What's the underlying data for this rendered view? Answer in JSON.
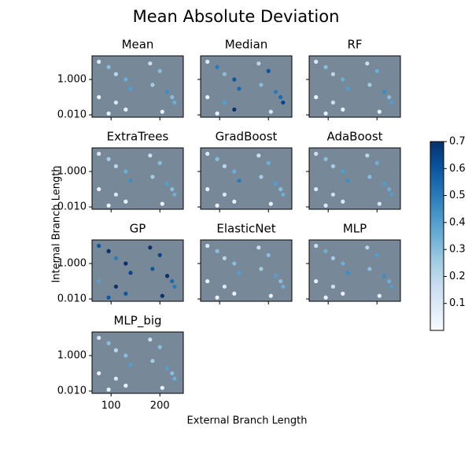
{
  "chart_data": {
    "type": "scatter",
    "title": "Mean Absolute Deviation",
    "xlabel": "External Branch Length",
    "ylabel": "Internal Branch Length",
    "log_y": true,
    "background": "#778899",
    "xlim": [
      61,
      248
    ],
    "xticks": [
      100,
      200
    ],
    "ylim": [
      0.0074,
      21.5
    ],
    "yticks": [
      {
        "value": 1,
        "label": "1.000"
      },
      {
        "value": 0.01,
        "label": "0.010"
      }
    ],
    "x": [
      75,
      95,
      110,
      130,
      140,
      75,
      110,
      130,
      180,
      200,
      215,
      230,
      185,
      205,
      225,
      95
    ],
    "y": [
      10,
      5,
      2,
      1,
      0.3,
      0.1,
      0.05,
      0.02,
      8,
      3,
      0.2,
      0.05,
      0.5,
      0.015,
      0.1,
      0.012
    ],
    "colorbar": {
      "clim": [
        0,
        0.7
      ],
      "ticks": [
        0.1,
        0.2,
        0.3,
        0.4,
        0.5,
        0.6,
        0.7
      ],
      "colormap": [
        "#f7fbff",
        "#deebf7",
        "#c6dbef",
        "#9ecae1",
        "#6baed6",
        "#4292c6",
        "#2171b5",
        "#08519c",
        "#08306b"
      ]
    },
    "panels": [
      {
        "name": "Mean",
        "values": [
          0.1,
          0.3,
          0.2,
          0.35,
          0.4,
          0.05,
          0.1,
          0.05,
          0.15,
          0.3,
          0.45,
          0.35,
          0.25,
          0.05,
          0.3,
          0.05
        ]
      },
      {
        "name": "Median",
        "values": [
          0.1,
          0.5,
          0.3,
          0.6,
          0.55,
          0.05,
          0.4,
          0.7,
          0.2,
          0.6,
          0.5,
          0.65,
          0.3,
          0.1,
          0.55,
          0.05
        ]
      },
      {
        "name": "RF",
        "values": [
          0.1,
          0.3,
          0.2,
          0.35,
          0.4,
          0.05,
          0.15,
          0.05,
          0.15,
          0.35,
          0.45,
          0.4,
          0.25,
          0.05,
          0.3,
          0.05
        ]
      },
      {
        "name": "ExtraTrees",
        "values": [
          0.1,
          0.25,
          0.2,
          0.35,
          0.45,
          0.05,
          0.1,
          0.05,
          0.15,
          0.3,
          0.4,
          0.35,
          0.25,
          0.05,
          0.3,
          0.05
        ]
      },
      {
        "name": "GradBoost",
        "values": [
          0.1,
          0.3,
          0.2,
          0.35,
          0.5,
          0.05,
          0.1,
          0.05,
          0.15,
          0.35,
          0.4,
          0.35,
          0.25,
          0.05,
          0.3,
          0.05
        ]
      },
      {
        "name": "AdaBoost",
        "values": [
          0.15,
          0.3,
          0.25,
          0.4,
          0.45,
          0.1,
          0.15,
          0.1,
          0.2,
          0.35,
          0.4,
          0.4,
          0.3,
          0.1,
          0.35,
          0.1
        ]
      },
      {
        "name": "GP",
        "values": [
          0.6,
          0.7,
          0.5,
          0.7,
          0.65,
          0.4,
          0.7,
          0.6,
          0.7,
          0.65,
          0.7,
          0.5,
          0.6,
          0.7,
          0.55,
          0.6
        ]
      },
      {
        "name": "ElasticNet",
        "values": [
          0.1,
          0.3,
          0.2,
          0.3,
          0.4,
          0.05,
          0.1,
          0.05,
          0.15,
          0.3,
          0.4,
          0.35,
          0.25,
          0.05,
          0.3,
          0.05
        ]
      },
      {
        "name": "MLP",
        "values": [
          0.15,
          0.35,
          0.25,
          0.35,
          0.45,
          0.05,
          0.15,
          0.05,
          0.2,
          0.4,
          0.45,
          0.4,
          0.3,
          0.05,
          0.35,
          0.05
        ]
      },
      {
        "name": "MLP_big",
        "values": [
          0.1,
          0.3,
          0.2,
          0.3,
          0.4,
          0.05,
          0.1,
          0.05,
          0.15,
          0.3,
          0.4,
          0.35,
          0.25,
          0.05,
          0.3,
          0.05
        ]
      }
    ]
  }
}
